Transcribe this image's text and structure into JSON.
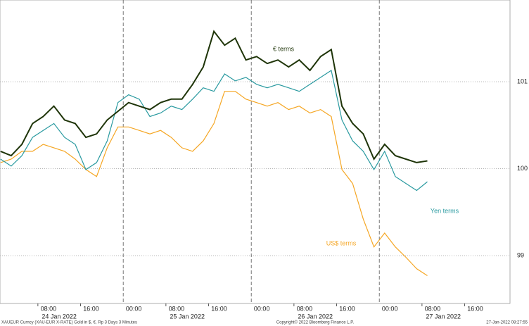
{
  "chart_data": {
    "type": "line",
    "footer_left": "XAUEUR Curncy (XAU-EUR X-RATE) Gold in $, €, Rp 3 Days 3 Minutes",
    "footer_center": "Copyright© 2022 Bloomberg Finance L.P.",
    "footer_right": "27-Jan-2022 08:27:55",
    "day_labels": [
      "24 Jan 2022",
      "25 Jan 2022",
      "26 Jan 2022",
      "27 Jan 2022"
    ],
    "x": [
      1,
      3,
      5,
      7,
      9,
      11,
      13,
      15,
      17,
      19,
      21,
      23,
      25,
      27,
      29,
      31,
      33,
      35,
      37,
      39,
      41,
      43,
      45,
      47,
      49,
      51,
      53,
      55,
      57,
      59,
      61,
      63,
      65,
      67,
      69,
      71,
      73,
      75,
      77,
      79,
      81
    ],
    "series": [
      {
        "name": "€ terms",
        "color": "#1e3408",
        "values": [
          100.2,
          100.15,
          100.28,
          100.52,
          100.6,
          100.72,
          100.56,
          100.52,
          100.36,
          100.4,
          100.56,
          100.66,
          100.76,
          100.72,
          100.68,
          100.76,
          100.8,
          100.8,
          100.97,
          101.17,
          101.58,
          101.42,
          101.5,
          101.25,
          101.29,
          101.21,
          101.25,
          101.17,
          101.25,
          101.13,
          101.29,
          101.37,
          100.72,
          100.52,
          100.4,
          100.11,
          100.28,
          100.15,
          100.11,
          100.07,
          100.09
        ]
      },
      {
        "name": "Yen terms",
        "color": "#2a9aa0",
        "values": [
          100.11,
          100.03,
          100.15,
          100.36,
          100.44,
          100.52,
          100.36,
          100.28,
          99.99,
          100.07,
          100.32,
          100.76,
          100.85,
          100.8,
          100.6,
          100.64,
          100.72,
          100.68,
          100.8,
          100.93,
          100.89,
          101.09,
          101.01,
          101.05,
          100.97,
          100.93,
          100.97,
          100.93,
          100.89,
          100.97,
          101.05,
          101.13,
          100.56,
          100.32,
          100.2,
          99.99,
          100.2,
          99.91,
          99.83,
          99.75,
          99.85
        ]
      },
      {
        "name": "US$ terms",
        "color": "#f5a623",
        "values": [
          100.07,
          100.11,
          100.2,
          100.2,
          100.28,
          100.24,
          100.2,
          100.11,
          99.99,
          99.91,
          100.24,
          100.48,
          100.48,
          100.44,
          100.4,
          100.44,
          100.36,
          100.24,
          100.2,
          100.32,
          100.52,
          100.89,
          100.89,
          100.8,
          100.76,
          100.72,
          100.76,
          100.68,
          100.72,
          100.64,
          100.68,
          100.6,
          99.99,
          99.83,
          99.42,
          99.1,
          99.26,
          99.1,
          98.98,
          98.85,
          98.77
        ]
      }
    ],
    "xlim": [
      0.9,
      96.5
    ],
    "xticks": [
      {
        "value": 8,
        "label": "08:00"
      },
      {
        "value": 16,
        "label": "16:00"
      },
      {
        "value": 24,
        "label": "00:00"
      },
      {
        "value": 32,
        "label": "08:00"
      },
      {
        "value": 40,
        "label": "16:00"
      },
      {
        "value": 48,
        "label": "00:00"
      },
      {
        "value": 56,
        "label": "08:00"
      },
      {
        "value": 64,
        "label": "16:00"
      },
      {
        "value": 72,
        "label": "00:00"
      },
      {
        "value": 80,
        "label": "08:00"
      },
      {
        "value": 88,
        "label": "16:00"
      }
    ],
    "ylim": [
      98.45,
      101.94
    ],
    "yticks": [
      99,
      100,
      101
    ],
    "grid": true
  }
}
